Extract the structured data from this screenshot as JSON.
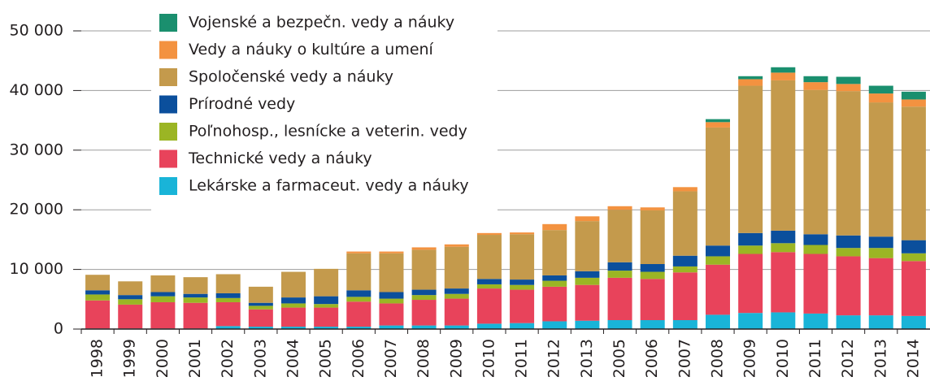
{
  "chart_data": {
    "type": "stacked_bar",
    "categories": [
      "1998",
      "1999",
      "2000",
      "2001",
      "2002",
      "2003",
      "2004",
      "2005",
      "2006",
      "2007",
      "2008",
      "2009",
      "2010",
      "2011",
      "2012",
      "2013",
      "2005",
      "2006",
      "2007",
      "2008",
      "2009",
      "2010",
      "2011",
      "2012",
      "2013",
      "2014"
    ],
    "series": [
      {
        "name": "Lekárske a farmaceut. vedy a náuky",
        "color": "#19b4d8",
        "values": [
          100,
          100,
          100,
          100,
          500,
          400,
          400,
          400,
          400,
          600,
          600,
          600,
          900,
          1000,
          1300,
          1400,
          1500,
          1500,
          1500,
          2400,
          2700,
          2800,
          2600,
          2300,
          2300,
          2200
        ]
      },
      {
        "name": "Technické vedy a náuky",
        "color": "#e8435b",
        "values": [
          4700,
          4000,
          4400,
          4300,
          4000,
          2900,
          3200,
          3200,
          4200,
          3700,
          4300,
          4500,
          5900,
          5600,
          5800,
          6000,
          7100,
          6900,
          8000,
          8400,
          9900,
          10100,
          10000,
          9900,
          9600,
          9200
        ]
      },
      {
        "name": "Poľnohosp., lesnícke a veterin. vedy",
        "color": "#9bb524",
        "values": [
          1000,
          900,
          1000,
          900,
          700,
          600,
          700,
          600,
          800,
          800,
          800,
          800,
          700,
          800,
          1000,
          1200,
          1200,
          1200,
          1000,
          1400,
          1400,
          1500,
          1500,
          1400,
          1700,
          1300
        ]
      },
      {
        "name": "Prírodné vedy",
        "color": "#0b4f9c",
        "values": [
          700,
          700,
          700,
          600,
          800,
          500,
          1000,
          1300,
          1100,
          1100,
          900,
          900,
          900,
          900,
          900,
          1100,
          1400,
          1300,
          1800,
          1800,
          2100,
          2100,
          1800,
          2100,
          1900,
          2200
        ]
      },
      {
        "name": "Spoločenské vedy a náuky",
        "color": "#c49a4c",
        "values": [
          2600,
          2300,
          2800,
          2800,
          3200,
          2700,
          4300,
          4600,
          6200,
          6500,
          6700,
          7000,
          7400,
          7600,
          7600,
          8400,
          8800,
          9000,
          10800,
          19800,
          24700,
          25200,
          24200,
          24200,
          22500,
          22400
        ]
      },
      {
        "name": "Vedy a náuky o kultúre a umení",
        "color": "#f39240",
        "values": [
          0,
          0,
          0,
          0,
          0,
          0,
          0,
          0,
          300,
          300,
          400,
          400,
          300,
          300,
          1000,
          800,
          600,
          500,
          700,
          900,
          1100,
          1300,
          1300,
          1200,
          1500,
          1200
        ]
      },
      {
        "name": "Vojenské a bezpečn. vedy a náuky",
        "color": "#1a8f6e",
        "values": [
          0,
          0,
          0,
          0,
          0,
          0,
          0,
          0,
          0,
          0,
          0,
          0,
          0,
          0,
          0,
          0,
          0,
          0,
          0,
          500,
          500,
          900,
          1000,
          1200,
          1300,
          1300
        ]
      }
    ],
    "ylim": [
      0,
      50000
    ],
    "yticks": [
      0,
      {
        "value": 10000,
        "label": "10 000"
      },
      {
        "value": 20000,
        "label": "20 000"
      },
      {
        "value": 30000,
        "label": "30 000"
      },
      {
        "value": 40000,
        "label": "40 000"
      },
      {
        "value": 50000,
        "label": "50 000"
      }
    ],
    "grid": true,
    "legend": "top-left"
  }
}
